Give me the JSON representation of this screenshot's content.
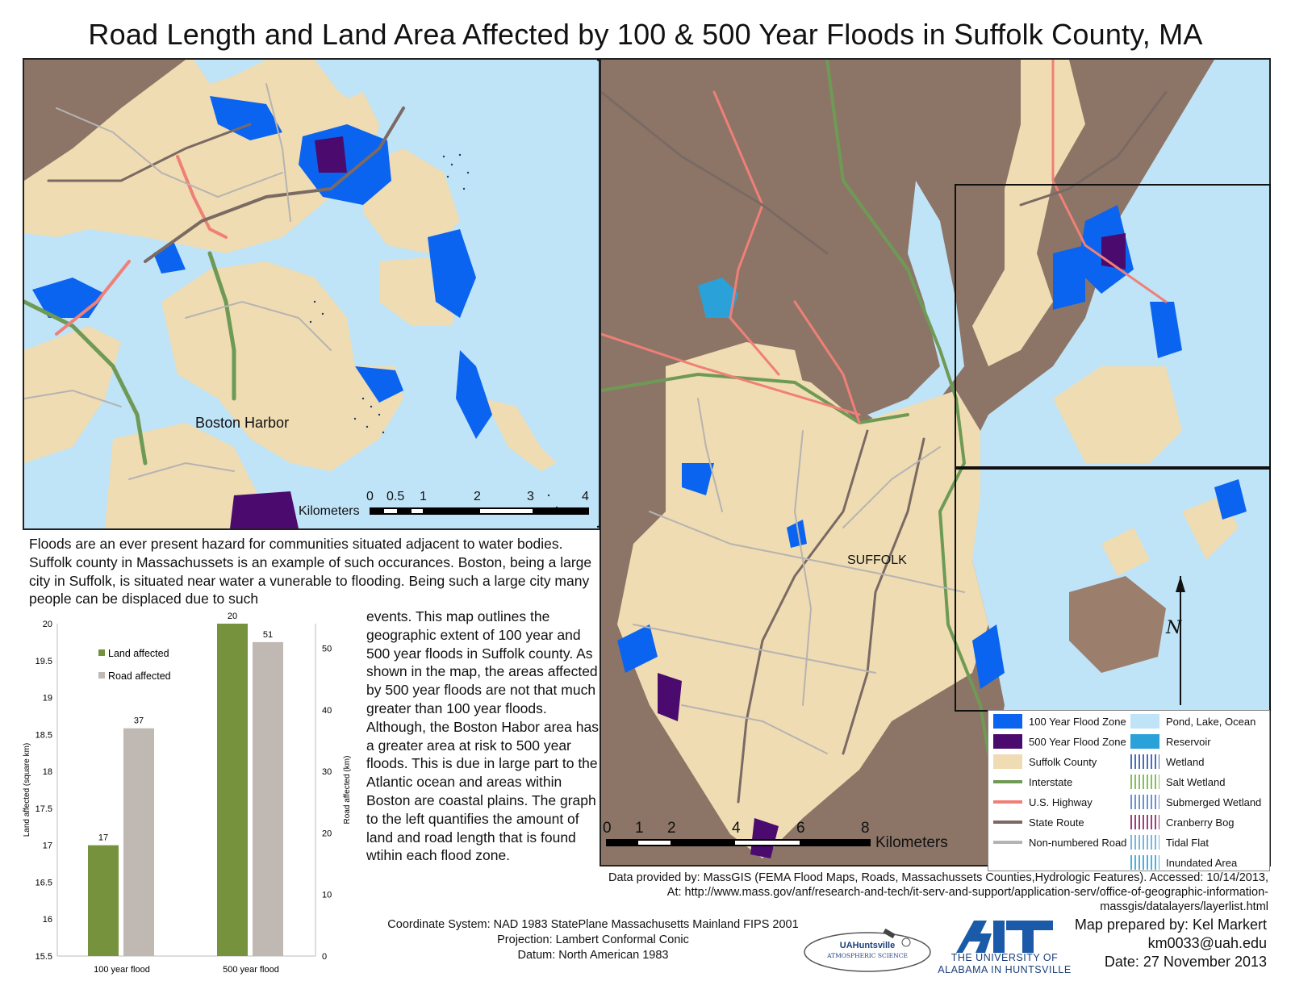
{
  "title": "Road Length and Land Area Affected by 100 & 500 Year Floods in Suffolk County, MA",
  "inset_map": {
    "label": "Boston Harbor",
    "scale_unit": "Kilometers",
    "scale_ticks": [
      "0",
      "0.5",
      "1",
      "2",
      "3",
      "4"
    ]
  },
  "main_map": {
    "label": "SUFFOLK",
    "scale_unit": "Kilometers",
    "scale_ticks": [
      "0",
      "1",
      "2",
      "4",
      "6",
      "8"
    ],
    "north_arrow": "N"
  },
  "paragraph_top": "Floods are an ever present hazard for communities situated adjacent to water bodies. Suffolk county in Massachussets is an example of such occurances. Boston, being a large city in Suffolk, is situated near water a vunerable to flooding. Being such a large city many people can be displaced due to such",
  "paragraph_side": "events. This map outlines the geographic extent of 100 year and 500 year floods in Suffolk county. As shown in the map, the areas affected by 500 year floods are not that much greater than 100 year floods. Although, the Boston Habor area has a greater area at risk to 500 year floods. This is due in large part to the Atlantic ocean and areas within Boston are coastal plains. The graph to the left quantifies the amount of land and road length that is found wtihin each flood zone.",
  "chart_data": {
    "type": "bar",
    "categories": [
      "100 year flood",
      "500 year flood"
    ],
    "series": [
      {
        "name": "Land affected",
        "axis": "left",
        "color": "#76923c",
        "values": [
          17,
          20
        ]
      },
      {
        "name": "Road affected",
        "axis": "right",
        "color": "#bfb8b3",
        "values": [
          37,
          51
        ]
      }
    ],
    "ylabel_left": "Land affected (square km)",
    "ylabel_right": "Road affected (km)",
    "ylim_left": [
      15.5,
      20
    ],
    "yticks_left": [
      "15.5",
      "16",
      "16.5",
      "17",
      "17.5",
      "18",
      "18.5",
      "19",
      "19.5",
      "20"
    ],
    "ylim_right": [
      0,
      54
    ],
    "yticks_right": [
      "0",
      "10",
      "20",
      "30",
      "40",
      "50"
    ],
    "data_labels": [
      "17",
      "20",
      "37",
      "51"
    ],
    "legend_position": "top-left"
  },
  "legend": {
    "items": [
      {
        "label": "100 Year Flood Zone",
        "color": "#0a64f0",
        "kind": "fill"
      },
      {
        "label": "500 Year Flood Zone",
        "color": "#4b0a6e",
        "kind": "fill"
      },
      {
        "label": "Suffolk County",
        "color": "#efdcb2",
        "kind": "fill"
      },
      {
        "label": "Interstate",
        "color": "#6e9a55",
        "kind": "line"
      },
      {
        "label": "U.S. Highway",
        "color": "#f07f77",
        "kind": "line"
      },
      {
        "label": "State Route",
        "color": "#7a6a63",
        "kind": "line"
      },
      {
        "label": "Non-numbered Road",
        "color": "#b7b3b1",
        "kind": "line"
      },
      {
        "label": "Pond, Lake, Ocean",
        "color": "#bfe3f7",
        "kind": "fill"
      },
      {
        "label": "Reservoir",
        "color": "#2aa2d9",
        "kind": "fill"
      },
      {
        "label": "Wetland",
        "color": "#2a52b0",
        "kind": "pattern"
      },
      {
        "label": "Salt Wetland",
        "color": "#6db53c",
        "kind": "pattern"
      },
      {
        "label": "Submerged Wetland",
        "color": "#4f7fc7",
        "kind": "pattern"
      },
      {
        "label": "Cranberry Bog",
        "color": "#8e1a62",
        "kind": "pattern"
      },
      {
        "label": "Tidal Flat",
        "color": "#5fa9d9",
        "kind": "pattern"
      },
      {
        "label": "Inundated Area",
        "color": "#2aa2d9",
        "kind": "pattern"
      }
    ]
  },
  "credits": "Data provided by: MassGIS (FEMA Flood Maps, Roads, Massachussets Counties,Hydrologic Features). Accessed: 10/14/2013, At: http://www.mass.gov/anf/research-and-tech/it-serv-and-support/application-serv/office-of-geographic-information-massgis/datalayers/layerlist.html",
  "coordinate_info": {
    "system": "Coordinate System: NAD 1983 StatePlane Massachusetts Mainland FIPS 2001",
    "projection": "Projection: Lambert Conformal Conic",
    "datum": "Datum: North American 1983"
  },
  "logos": {
    "uah_atmos_title": "UAHuntsville",
    "uah_atmos_sub": "ATMOSPHERIC SCIENCE",
    "uah_line1": "THE UNIVERSITY OF",
    "uah_line2": "ALABAMA IN HUNTSVILLE"
  },
  "author": {
    "prepared_by": "Map prepared by: Kel Markert",
    "email": "km0033@uah.edu",
    "date": "Date: 27 November 2013"
  }
}
